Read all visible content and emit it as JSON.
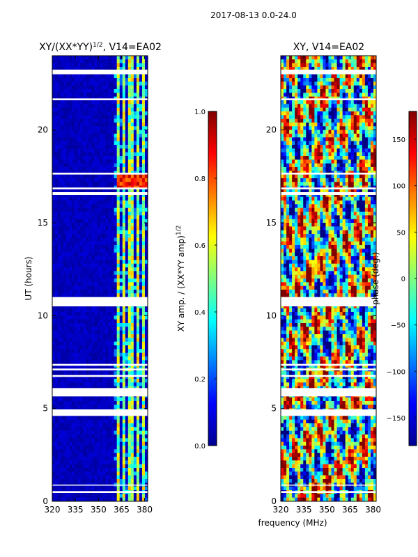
{
  "chart_data": [
    {
      "type": "heatmap",
      "title_main": "XY/(XX*YY)",
      "title_sup": "1/2",
      "title_tail": ", V14=EA02",
      "xlabel": "",
      "ylabel": "UT (hours)",
      "x_ticks": [
        "320",
        "335",
        "350",
        "365",
        "380"
      ],
      "x_tick_values": [
        320,
        335,
        350,
        365,
        380
      ],
      "xlim": [
        320,
        382
      ],
      "y_ticks": [
        "0",
        "5",
        "10",
        "15",
        "20"
      ],
      "y_tick_values": [
        0,
        5,
        10,
        15,
        20
      ],
      "ylim": [
        0,
        24
      ],
      "colormap": "jet",
      "colorbar": {
        "label_main": "XY amp. / (XX*YY amp)",
        "label_sup": "1/2",
        "ticks": [
          "0.0",
          "0.2",
          "0.4",
          "0.6",
          "0.8",
          "1.0"
        ],
        "tick_values": [
          0,
          0.2,
          0.4,
          0.6,
          0.8,
          1.0
        ],
        "range": [
          0,
          1
        ]
      },
      "gaps_hours": [
        [
          0.45,
          0.55
        ],
        [
          0.85,
          0.9
        ],
        [
          4.6,
          4.95
        ],
        [
          5.65,
          6.1
        ],
        [
          6.7,
          6.8
        ],
        [
          7.05,
          7.15
        ],
        [
          7.3,
          7.4
        ],
        [
          10.5,
          11.0
        ],
        [
          16.5,
          16.65
        ],
        [
          16.8,
          16.9
        ],
        [
          17.6,
          17.7
        ],
        [
          21.6,
          21.7
        ],
        [
          23.0,
          23.25
        ]
      ],
      "bright_channels_mhz": [
        [
          362,
          364
        ],
        [
          366,
          368
        ],
        [
          370,
          372
        ],
        [
          374,
          376
        ],
        [
          378,
          380
        ]
      ]
    },
    {
      "type": "heatmap",
      "title_main": "XY, V14=EA02",
      "title_sup": "",
      "title_tail": "",
      "xlabel": "frequency (MHz)",
      "ylabel": "",
      "x_ticks": [
        "320",
        "335",
        "350",
        "365",
        "380"
      ],
      "x_tick_values": [
        320,
        335,
        350,
        365,
        380
      ],
      "xlim": [
        320,
        382
      ],
      "y_ticks": [
        "0",
        "5",
        "10",
        "15",
        "20"
      ],
      "y_tick_values": [
        0,
        5,
        10,
        15,
        20
      ],
      "ylim": [
        0,
        24
      ],
      "colormap": "jet",
      "colorbar": {
        "label_main": "phase (deg.)",
        "label_sup": "",
        "ticks": [
          "−150",
          "−100",
          "−50",
          "0",
          "50",
          "100",
          "150"
        ],
        "tick_values": [
          -150,
          -100,
          -50,
          0,
          50,
          100,
          150
        ],
        "range": [
          -180,
          180
        ]
      },
      "gaps_hours": [
        [
          0.45,
          0.55
        ],
        [
          0.85,
          0.9
        ],
        [
          4.6,
          4.95
        ],
        [
          5.65,
          6.1
        ],
        [
          6.7,
          6.8
        ],
        [
          7.05,
          7.15
        ],
        [
          7.3,
          7.4
        ],
        [
          10.5,
          11.0
        ],
        [
          16.5,
          16.65
        ],
        [
          16.8,
          16.9
        ],
        [
          17.6,
          17.7
        ],
        [
          21.6,
          21.7
        ],
        [
          23.0,
          23.25
        ]
      ]
    }
  ],
  "suptitle": "2017-08-13 0.0-24.0",
  "colors": {
    "background_low": "#00008f",
    "frame": "#000000"
  }
}
